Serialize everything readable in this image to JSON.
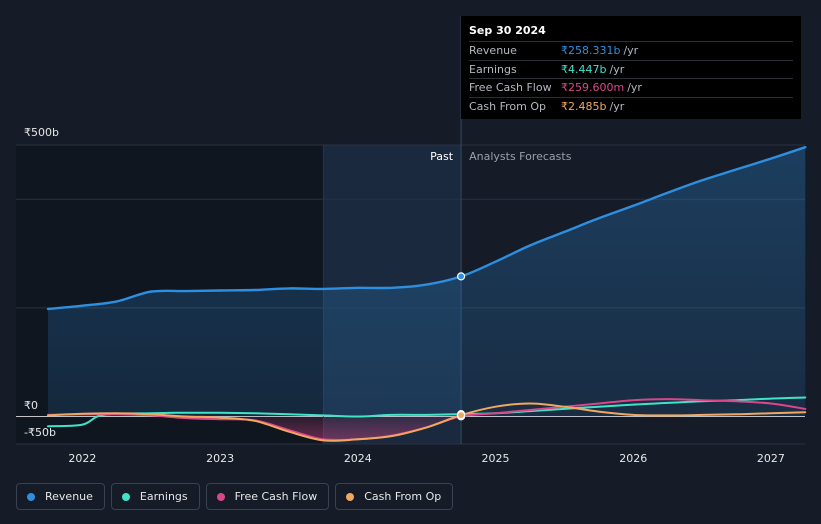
{
  "tooltip": {
    "date": "Sep 30 2024",
    "rows": [
      {
        "name": "Revenue",
        "value": "₹258.331b",
        "unit": "/yr",
        "color": "#2e8fe0"
      },
      {
        "name": "Earnings",
        "value": "₹4.447b",
        "unit": "/yr",
        "color": "#3fe3c8"
      },
      {
        "name": "Free Cash Flow",
        "value": "₹259.600m",
        "unit": "/yr",
        "color": "#d9468a"
      },
      {
        "name": "Cash From Op",
        "value": "₹2.485b",
        "unit": "/yr",
        "color": "#f0a860"
      }
    ]
  },
  "region_labels": {
    "past": "Past",
    "forecast": "Analysts Forecasts"
  },
  "legend": [
    {
      "label": "Revenue",
      "color": "#2e8fe0"
    },
    {
      "label": "Earnings",
      "color": "#3fe3c8"
    },
    {
      "label": "Free Cash Flow",
      "color": "#d9468a"
    },
    {
      "label": "Cash From Op",
      "color": "#f0a860"
    }
  ],
  "chart_data": {
    "type": "line",
    "y_axis_labels": [
      {
        "value": 500,
        "label": "₹500b"
      },
      {
        "value": 0,
        "label": "₹0"
      },
      {
        "value": -50,
        "label": "-₹50b"
      }
    ],
    "ylim": [
      -52,
      500
    ],
    "xlim": [
      2021.75,
      2027.25
    ],
    "x_ticks": [
      {
        "value": 2022,
        "label": "2022"
      },
      {
        "value": 2023,
        "label": "2023"
      },
      {
        "value": 2024,
        "label": "2024"
      },
      {
        "value": 2025,
        "label": "2025"
      },
      {
        "value": 2026,
        "label": "2026"
      },
      {
        "value": 2027,
        "label": "2027"
      }
    ],
    "past_start": 2023.75,
    "divider": 2024.75,
    "series": [
      {
        "name": "Revenue",
        "color": "#2e8fe0",
        "points": [
          [
            2021.75,
            198
          ],
          [
            2022,
            204
          ],
          [
            2022.25,
            212
          ],
          [
            2022.5,
            230
          ],
          [
            2022.75,
            231
          ],
          [
            2023,
            232
          ],
          [
            2023.25,
            233
          ],
          [
            2023.5,
            236
          ],
          [
            2023.75,
            235
          ],
          [
            2024,
            237
          ],
          [
            2024.25,
            237
          ],
          [
            2024.5,
            243
          ],
          [
            2024.75,
            258
          ],
          [
            2025,
            285
          ],
          [
            2025.25,
            315
          ],
          [
            2025.5,
            340
          ],
          [
            2025.75,
            365
          ],
          [
            2026,
            388
          ],
          [
            2026.25,
            412
          ],
          [
            2026.5,
            435
          ],
          [
            2026.75,
            455
          ],
          [
            2027,
            475
          ],
          [
            2027.25,
            496
          ]
        ]
      },
      {
        "name": "Earnings",
        "color": "#3fe3c8",
        "points": [
          [
            2021.75,
            -18
          ],
          [
            2022,
            -15
          ],
          [
            2022.15,
            3
          ],
          [
            2022.5,
            6
          ],
          [
            2022.75,
            7
          ],
          [
            2023,
            7
          ],
          [
            2023.25,
            6
          ],
          [
            2023.5,
            4
          ],
          [
            2023.75,
            2
          ],
          [
            2024,
            0
          ],
          [
            2024.25,
            3
          ],
          [
            2024.5,
            3
          ],
          [
            2024.75,
            4.4
          ],
          [
            2025,
            6
          ],
          [
            2025.25,
            10
          ],
          [
            2025.5,
            14
          ],
          [
            2025.75,
            18
          ],
          [
            2026,
            22
          ],
          [
            2026.25,
            25
          ],
          [
            2026.5,
            28
          ],
          [
            2026.75,
            30
          ],
          [
            2027,
            33
          ],
          [
            2027.25,
            35
          ]
        ]
      },
      {
        "name": "Free Cash Flow",
        "color": "#d9468a",
        "points": [
          [
            2021.75,
            3
          ],
          [
            2022,
            4
          ],
          [
            2022.25,
            4
          ],
          [
            2022.5,
            2
          ],
          [
            2022.75,
            -3
          ],
          [
            2023,
            -5
          ],
          [
            2023.25,
            -7
          ],
          [
            2023.5,
            -25
          ],
          [
            2023.75,
            -42
          ],
          [
            2024,
            -42
          ],
          [
            2024.25,
            -35
          ],
          [
            2024.5,
            -20
          ],
          [
            2024.75,
            0.3
          ],
          [
            2025,
            6
          ],
          [
            2025.25,
            12
          ],
          [
            2025.5,
            18
          ],
          [
            2025.75,
            24
          ],
          [
            2026,
            30
          ],
          [
            2026.25,
            32
          ],
          [
            2026.5,
            30
          ],
          [
            2026.75,
            28
          ],
          [
            2027,
            24
          ],
          [
            2027.25,
            14
          ]
        ]
      },
      {
        "name": "Cash From Op",
        "color": "#f0a860",
        "points": [
          [
            2021.75,
            2
          ],
          [
            2022,
            5
          ],
          [
            2022.25,
            6
          ],
          [
            2022.5,
            4
          ],
          [
            2022.75,
            0
          ],
          [
            2023,
            -2
          ],
          [
            2023.25,
            -8
          ],
          [
            2023.5,
            -28
          ],
          [
            2023.75,
            -44
          ],
          [
            2024,
            -42
          ],
          [
            2024.25,
            -36
          ],
          [
            2024.5,
            -20
          ],
          [
            2024.75,
            2.5
          ],
          [
            2025,
            18
          ],
          [
            2025.25,
            24
          ],
          [
            2025.5,
            18
          ],
          [
            2025.75,
            9
          ],
          [
            2026,
            3
          ],
          [
            2026.25,
            2
          ],
          [
            2026.5,
            3
          ],
          [
            2026.75,
            4
          ],
          [
            2027,
            6
          ],
          [
            2027.25,
            8
          ]
        ]
      }
    ]
  }
}
